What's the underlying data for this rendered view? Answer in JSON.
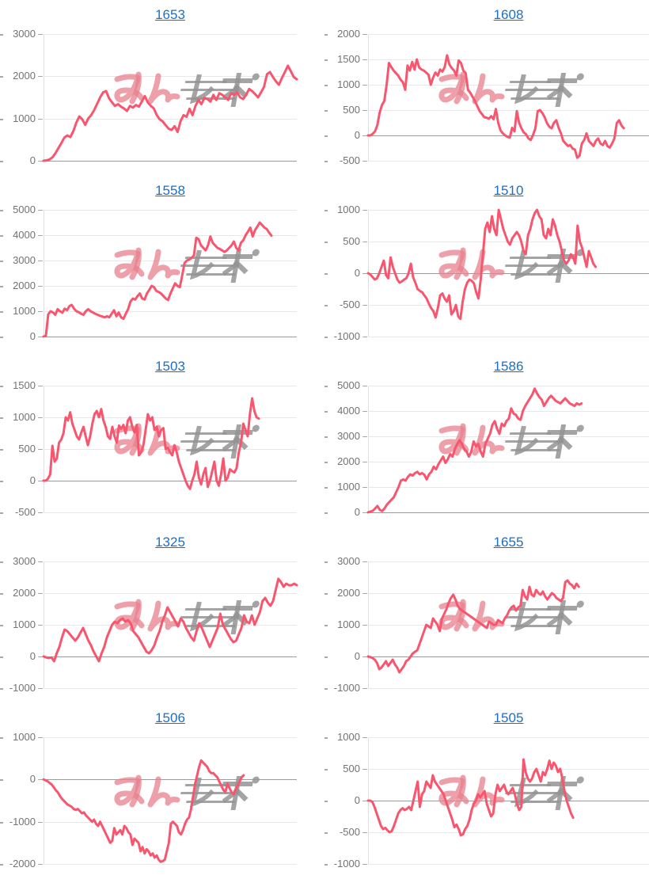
{
  "watermark": {
    "text": "みんレポ",
    "pink_color": "rgba(231,128,141,0.75)",
    "gray_color": "rgba(148,148,148,0.85)"
  },
  "style": {
    "line_color": "#f8566f",
    "grid_color": "#e8e8e8",
    "zero_axis_color": "#9b9b9b",
    "axis_line_color": "#e0e0e0",
    "tick_color": "#a8a8a8",
    "label_color": "#737373",
    "title_color": "#1c6fc8",
    "background": "#ffffff"
  },
  "chart_data": [
    {
      "type": "line",
      "title": "1653",
      "ylim": [
        0,
        3000
      ],
      "yticks": [
        0,
        1000,
        2000,
        3000
      ],
      "span": 1.0,
      "values": [
        0,
        10,
        30,
        80,
        180,
        300,
        420,
        550,
        600,
        560,
        700,
        900,
        1050,
        980,
        850,
        1000,
        1080,
        1200,
        1350,
        1500,
        1620,
        1650,
        1480,
        1380,
        1300,
        1340,
        1280,
        1240,
        1180,
        1300,
        1260,
        1320,
        1280,
        1400,
        1530,
        1380,
        1300,
        1240,
        1080,
        980,
        930,
        840,
        760,
        730,
        820,
        680,
        940,
        1080,
        1040,
        1230,
        1080,
        1300,
        1440,
        1340,
        1490,
        1460,
        1400,
        1560,
        1440,
        1600,
        1560,
        1500,
        1440,
        1600,
        1560,
        1620,
        1500,
        1460,
        1560,
        1700,
        1650,
        1580,
        1500,
        1620,
        1750,
        2050,
        2100,
        1980,
        1880,
        1800,
        1960,
        2100,
        2250,
        2120,
        1980,
        1930
      ]
    },
    {
      "type": "line",
      "title": "1608",
      "ylim": [
        -500,
        2000
      ],
      "yticks": [
        -500,
        0,
        500,
        1000,
        1500,
        2000
      ],
      "span": 0.91,
      "values": [
        0,
        0,
        30,
        80,
        200,
        450,
        600,
        680,
        1000,
        1430,
        1350,
        1280,
        1230,
        1180,
        1100,
        1050,
        900,
        1380,
        1280,
        1450,
        1300,
        1500,
        1340,
        1300,
        1280,
        1240,
        1200,
        1000,
        1140,
        1240,
        1180,
        1300,
        1260,
        1350,
        1580,
        1400,
        1330,
        1280,
        1180,
        1480,
        1430,
        1280,
        1230,
        900,
        840,
        760,
        680,
        580,
        480,
        420,
        360,
        350,
        330,
        380,
        320,
        520,
        250,
        100,
        40,
        0,
        -30,
        -40,
        150,
        80,
        480,
        250,
        140,
        60,
        20,
        -60,
        -90,
        10,
        140,
        480,
        500,
        440,
        360,
        240,
        170,
        140,
        250,
        300,
        150,
        40,
        -110,
        -160,
        -210,
        -190,
        -260,
        -280,
        -440,
        -400,
        -160,
        -90,
        40,
        -110,
        -160,
        -210,
        -110,
        -60,
        -160,
        -190,
        -110,
        -210,
        -240,
        -160,
        -60,
        240,
        300,
        200,
        140
      ]
    },
    {
      "type": "line",
      "title": "1558",
      "ylim": [
        0,
        5000
      ],
      "yticks": [
        0,
        1000,
        2000,
        3000,
        4000,
        5000
      ],
      "span": 0.9,
      "values": [
        0,
        30,
        880,
        1000,
        950,
        860,
        1080,
        1000,
        940,
        1100,
        1040,
        1200,
        1250,
        1100,
        1000,
        960,
        900,
        860,
        1000,
        1080,
        1000,
        950,
        900,
        860,
        820,
        790,
        760,
        800,
        760,
        900,
        1040,
        800,
        950,
        760,
        700,
        900,
        1080,
        1380,
        1500,
        1460,
        1600,
        1700,
        1500,
        1460,
        1700,
        1840,
        2000,
        1950,
        1800,
        1760,
        1700,
        1600,
        1500,
        1440,
        1700,
        1900,
        2100,
        2000,
        1950,
        2400,
        2900,
        3000,
        3040,
        3100,
        3200,
        3900,
        3840,
        3600,
        3500,
        3400,
        3600,
        3950,
        3700,
        3600,
        3500,
        3460,
        3400,
        3340,
        3400,
        3500,
        3600,
        3750,
        3500,
        3400,
        3700,
        3800,
        4000,
        4140,
        4300,
        3950,
        4200,
        4340,
        4500,
        4400,
        4300,
        4240,
        4100,
        3980
      ]
    },
    {
      "type": "line",
      "title": "1510",
      "ylim": [
        -1000,
        1000
      ],
      "yticks": [
        -1000,
        -500,
        0,
        500,
        1000
      ],
      "span": 0.81,
      "values": [
        0,
        -20,
        -60,
        -100,
        -80,
        0,
        100,
        200,
        -30,
        -80,
        250,
        100,
        0,
        -100,
        -150,
        -130,
        -100,
        -80,
        0,
        150,
        -60,
        -150,
        -250,
        -280,
        -300,
        -350,
        -400,
        -480,
        -550,
        -600,
        -700,
        -550,
        -350,
        -320,
        -400,
        -450,
        -350,
        -650,
        -600,
        -500,
        -680,
        -720,
        -450,
        -250,
        -150,
        -100,
        -120,
        -160,
        -300,
        -400,
        -100,
        300,
        700,
        800,
        650,
        900,
        700,
        600,
        1000,
        850,
        700,
        600,
        500,
        450,
        550,
        600,
        650,
        600,
        500,
        350,
        300,
        600,
        700,
        850,
        950,
        1000,
        900,
        850,
        600,
        550,
        700,
        600,
        850,
        750,
        600,
        500,
        350,
        200,
        150,
        200,
        300,
        250,
        150,
        750,
        500,
        400,
        250,
        100,
        350,
        250,
        150,
        100
      ]
    },
    {
      "type": "line",
      "title": "1503",
      "ylim": [
        -500,
        1500
      ],
      "yticks": [
        -500,
        0,
        500,
        1000,
        1500
      ],
      "span": 0.85,
      "values": [
        0,
        0,
        30,
        100,
        550,
        300,
        350,
        600,
        650,
        750,
        1000,
        950,
        1080,
        900,
        800,
        700,
        650,
        760,
        850,
        700,
        560,
        700,
        900,
        1050,
        1100,
        1000,
        1130,
        950,
        850,
        700,
        660,
        850,
        700,
        600,
        870,
        820,
        880,
        750,
        950,
        1000,
        850,
        760,
        880,
        400,
        450,
        560,
        800,
        1050,
        950,
        1000,
        800,
        850,
        700,
        800,
        830,
        500,
        520,
        450,
        400,
        560,
        450,
        300,
        200,
        100,
        0,
        -80,
        -130,
        0,
        100,
        300,
        50,
        -60,
        100,
        200,
        -100,
        0,
        150,
        300,
        0,
        -80,
        100,
        350,
        0,
        50,
        180,
        150,
        130,
        200,
        450,
        600,
        900,
        800,
        700,
        1050,
        1300,
        1100,
        1000,
        980
      ]
    },
    {
      "type": "line",
      "title": "1586",
      "ylim": [
        0,
        5000
      ],
      "yticks": [
        0,
        1000,
        2000,
        3000,
        4000,
        5000
      ],
      "span": 0.76,
      "values": [
        0,
        30,
        60,
        150,
        250,
        100,
        50,
        150,
        300,
        400,
        500,
        600,
        800,
        1000,
        1250,
        1300,
        1250,
        1400,
        1500,
        1450,
        1550,
        1600,
        1500,
        1550,
        1480,
        1300,
        1500,
        1600,
        1800,
        1700,
        1900,
        2050,
        2200,
        1950,
        2100,
        2300,
        2200,
        2500,
        2700,
        2850,
        2700,
        2500,
        2400,
        2200,
        2400,
        2800,
        2600,
        2700,
        2400,
        2200,
        2700,
        2900,
        3100,
        3450,
        3600,
        3300,
        3100,
        3500,
        3400,
        3600,
        3700,
        4100,
        3900,
        3850,
        3700,
        3650,
        4000,
        4200,
        4350,
        4500,
        4650,
        4880,
        4700,
        4550,
        4450,
        4200,
        4350,
        4500,
        4600,
        4500,
        4400,
        4350,
        4300,
        4400,
        4500,
        4400,
        4300,
        4250,
        4200,
        4300,
        4250,
        4300
      ]
    },
    {
      "type": "line",
      "title": "1325",
      "ylim": [
        -1000,
        3000
      ],
      "yticks": [
        -1000,
        0,
        1000,
        2000,
        3000
      ],
      "span": 1.0,
      "values": [
        0,
        -30,
        -50,
        -30,
        -150,
        100,
        300,
        600,
        850,
        800,
        700,
        600,
        500,
        600,
        750,
        900,
        700,
        500,
        350,
        150,
        0,
        -150,
        100,
        300,
        600,
        800,
        1000,
        1100,
        1050,
        1150,
        1200,
        1100,
        1150,
        1050,
        800,
        700,
        600,
        450,
        300,
        150,
        100,
        200,
        350,
        600,
        800,
        1100,
        1300,
        1550,
        1400,
        1250,
        1100,
        950,
        1200,
        1100,
        900,
        750,
        600,
        500,
        800,
        1050,
        900,
        700,
        500,
        300,
        500,
        700,
        900,
        1350,
        1000,
        850,
        700,
        550,
        450,
        500,
        700,
        900,
        1300,
        1100,
        1050,
        1300,
        1000,
        1200,
        1400,
        1750,
        1850,
        1700,
        1600,
        1750,
        2100,
        2450,
        2350,
        2200,
        2300,
        2250,
        2250,
        2300,
        2250
      ]
    },
    {
      "type": "line",
      "title": "1655",
      "ylim": [
        -1000,
        3000
      ],
      "yticks": [
        -1000,
        0,
        1000,
        2000,
        3000
      ],
      "span": 0.75,
      "values": [
        0,
        -20,
        -50,
        -100,
        -200,
        -400,
        -350,
        -250,
        -150,
        -300,
        -200,
        -100,
        -250,
        -350,
        -500,
        -400,
        -300,
        -150,
        -100,
        0,
        100,
        150,
        200,
        400,
        600,
        800,
        1000,
        950,
        900,
        1200,
        1100,
        1000,
        800,
        1200,
        1350,
        1500,
        1700,
        1850,
        1950,
        1800,
        1600,
        1500,
        1450,
        1400,
        1350,
        1300,
        1250,
        1200,
        1150,
        1100,
        1050,
        1000,
        950,
        900,
        1100,
        1050,
        1000,
        1000,
        1150,
        1100,
        1050,
        1200,
        1300,
        1450,
        1550,
        1600,
        1450,
        1550,
        1600,
        2100,
        1900,
        1800,
        2200,
        1950,
        1900,
        2100,
        2000,
        1950,
        2050,
        1900,
        1800,
        1900,
        2000,
        1950,
        1850,
        1800,
        1750,
        1850,
        2350,
        2400,
        2300,
        2250,
        2150,
        2300,
        2200
      ]
    },
    {
      "type": "line",
      "title": "1506",
      "ylim": [
        -2000,
        1000
      ],
      "yticks": [
        -2000,
        -1000,
        0,
        1000
      ],
      "span": 0.79,
      "values": [
        0,
        -20,
        -40,
        -80,
        -120,
        -180,
        -250,
        -300,
        -380,
        -450,
        -500,
        -550,
        -600,
        -620,
        -650,
        -700,
        -720,
        -700,
        -750,
        -800,
        -780,
        -850,
        -900,
        -950,
        -1000,
        -950,
        -1050,
        -1100,
        -1000,
        -1100,
        -1200,
        -1300,
        -1400,
        -1500,
        -1450,
        -1150,
        -1300,
        -1250,
        -1200,
        -1300,
        -1100,
        -1150,
        -1250,
        -1300,
        -1550,
        -1400,
        -1450,
        -1500,
        -1700,
        -1600,
        -1750,
        -1650,
        -1700,
        -1800,
        -1750,
        -1850,
        -1800,
        -1900,
        -1950,
        -1930,
        -1900,
        -1700,
        -1500,
        -1050,
        -1000,
        -1050,
        -1100,
        -1250,
        -1300,
        -1200,
        -1050,
        -950,
        -900,
        -700,
        -400,
        -100,
        100,
        300,
        450,
        400,
        350,
        300,
        200,
        150,
        150,
        100,
        50,
        -50,
        -150,
        -250,
        -300,
        -100,
        -200,
        -300,
        -350,
        -250,
        -150,
        -50,
        50,
        100
      ]
    },
    {
      "type": "line",
      "title": "1505",
      "ylim": [
        -1000,
        1000
      ],
      "yticks": [
        -1000,
        -500,
        0,
        500,
        1000
      ],
      "span": 0.73,
      "values": [
        0,
        0,
        -20,
        -100,
        -200,
        -300,
        -400,
        -450,
        -430,
        -470,
        -500,
        -480,
        -400,
        -300,
        -200,
        -150,
        -120,
        -150,
        -130,
        -100,
        -150,
        0,
        150,
        300,
        -100,
        100,
        150,
        300,
        250,
        200,
        400,
        300,
        250,
        200,
        150,
        100,
        0,
        -100,
        -200,
        -300,
        -420,
        -380,
        -450,
        -550,
        -530,
        -450,
        -400,
        -300,
        -150,
        -50,
        0,
        100,
        50,
        100,
        150,
        -50,
        -150,
        -250,
        -200,
        100,
        250,
        150,
        200,
        250,
        150,
        100,
        150,
        200,
        100,
        -50,
        -150,
        -100,
        650,
        450,
        350,
        300,
        350,
        450,
        500,
        400,
        300,
        450,
        400,
        500,
        630,
        500,
        600,
        550,
        450,
        500,
        350,
        150,
        0,
        -100,
        -200,
        -270
      ]
    }
  ]
}
